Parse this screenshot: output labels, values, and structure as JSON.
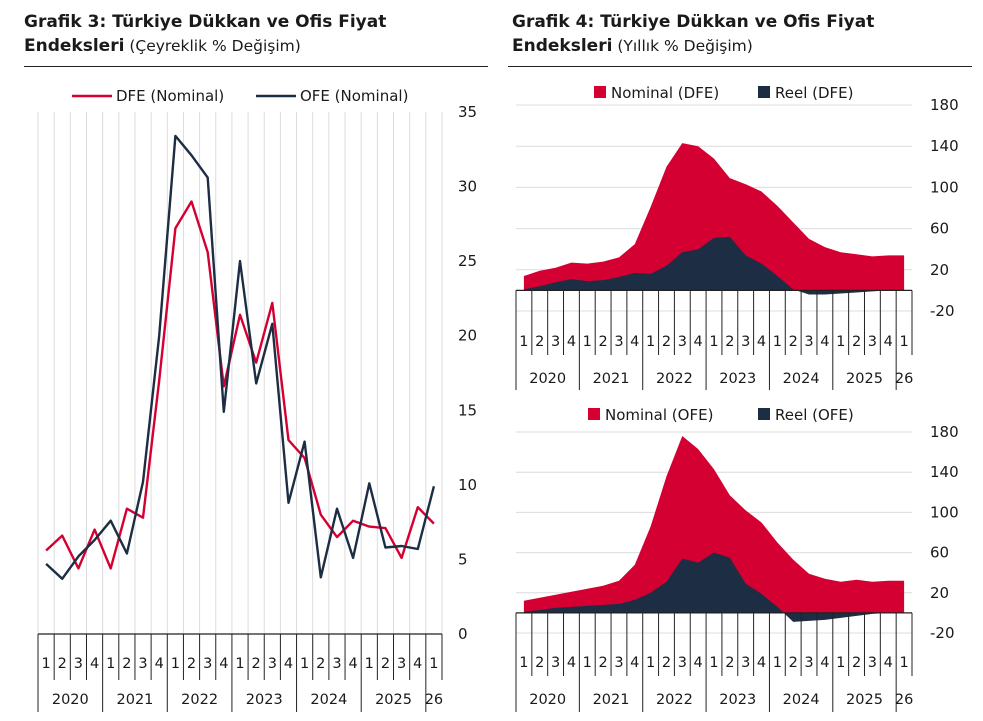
{
  "left": {
    "title_bold": "Grafik 3: Türkiye Dükkan ve Ofis Fiyat",
    "title_bold2": "Endeksleri",
    "title_sub": " (Çeyreklik % Değişim)"
  },
  "right": {
    "title_bold": "Grafik 4: Türkiye Dükkan ve Ofis Fiyat",
    "title_bold2": "Endeksleri",
    "title_sub": " (Yıllık % Değişim)"
  },
  "colors": {
    "red": "#d50032",
    "navy": "#1d2d44",
    "grid": "#dcdcdc"
  },
  "chart_data": [
    {
      "type": "line",
      "ylim": [
        0,
        35
      ],
      "yticks": [
        0,
        5,
        10,
        15,
        20,
        25,
        30,
        35
      ],
      "quarter_labels": [
        "1",
        "2",
        "3",
        "4",
        "1",
        "2",
        "3",
        "4",
        "1",
        "2",
        "3",
        "4",
        "1",
        "2",
        "3",
        "4",
        "1",
        "2",
        "3",
        "4",
        "1",
        "2",
        "3",
        "4",
        "1"
      ],
      "year_labels": [
        "2020",
        "2021",
        "2022",
        "2023",
        "2024",
        "2025",
        "26"
      ],
      "legend": [
        "DFE (Nominal)",
        "OFE (Nominal)"
      ],
      "series": [
        {
          "name": "DFE (Nominal)",
          "color": "red",
          "values": [
            5.6,
            6.6,
            4.4,
            7.0,
            4.4,
            8.4,
            7.8,
            17.0,
            27.2,
            29.0,
            25.6,
            16.6,
            21.4,
            18.2,
            22.2,
            13.0,
            11.8,
            8.0,
            6.5,
            7.6,
            7.2,
            7.1,
            5.1,
            8.5,
            7.4
          ]
        },
        {
          "name": "OFE (Nominal)",
          "color": "navy",
          "values": [
            4.7,
            3.7,
            5.2,
            6.3,
            7.6,
            5.4,
            10.2,
            20.0,
            33.4,
            32.1,
            30.6,
            14.9,
            25.0,
            16.8,
            20.8,
            8.8,
            12.9,
            3.8,
            8.4,
            5.1,
            10.1,
            5.8,
            5.9,
            5.7,
            9.9
          ]
        }
      ]
    },
    {
      "type": "area",
      "ylim": [
        -20,
        180
      ],
      "yticks": [
        -20,
        20,
        60,
        100,
        140,
        180
      ],
      "quarter_labels": [
        "1",
        "2",
        "3",
        "4",
        "1",
        "2",
        "3",
        "4",
        "1",
        "2",
        "3",
        "4",
        "1",
        "2",
        "3",
        "4",
        "1",
        "2",
        "3",
        "4",
        "1",
        "2",
        "3",
        "4",
        "1"
      ],
      "year_labels": [
        "2020",
        "2021",
        "2022",
        "2023",
        "2024",
        "2025",
        "26"
      ],
      "legend": [
        "Nominal (DFE)",
        "Reel (DFE)"
      ],
      "series": [
        {
          "name": "Nominal (DFE)",
          "color": "red",
          "values": [
            14,
            19,
            22,
            27,
            26,
            28,
            32,
            45,
            81,
            120,
            143,
            140,
            128,
            109,
            103,
            96,
            82,
            66,
            50,
            42,
            37,
            35,
            33,
            34,
            34
          ]
        },
        {
          "name": "Reel (DFE)",
          "color": "navy",
          "values": [
            1,
            4,
            8,
            11,
            9,
            10,
            13,
            17,
            16,
            24,
            37,
            40,
            51,
            52,
            34,
            26,
            14,
            1,
            -4,
            -4,
            -3,
            -2,
            -1,
            0,
            0
          ]
        }
      ]
    },
    {
      "type": "area",
      "ylim": [
        -20,
        180
      ],
      "yticks": [
        -20,
        20,
        60,
        100,
        140,
        180
      ],
      "quarter_labels": [
        "1",
        "2",
        "3",
        "4",
        "1",
        "2",
        "3",
        "4",
        "1",
        "2",
        "3",
        "4",
        "1",
        "2",
        "3",
        "4",
        "1",
        "2",
        "3",
        "4",
        "1",
        "2",
        "3",
        "4",
        "1"
      ],
      "year_labels": [
        "2020",
        "2021",
        "2022",
        "2023",
        "2024",
        "2025",
        "26"
      ],
      "legend": [
        "Nominal (OFE)",
        "Reel (OFE)"
      ],
      "series": [
        {
          "name": "Nominal (OFE)",
          "color": "red",
          "values": [
            12,
            15,
            18,
            21,
            24,
            27,
            32,
            48,
            86,
            136,
            176,
            163,
            143,
            117,
            102,
            90,
            70,
            53,
            39,
            34,
            31,
            33,
            31,
            32,
            32
          ]
        },
        {
          "name": "Reel (OFE)",
          "color": "navy",
          "values": [
            1,
            3,
            5,
            6,
            7,
            8,
            9,
            13,
            20,
            31,
            54,
            50,
            60,
            55,
            29,
            19,
            6,
            -9,
            -8,
            -7,
            -5,
            -3,
            -1,
            0,
            0
          ]
        }
      ]
    }
  ]
}
